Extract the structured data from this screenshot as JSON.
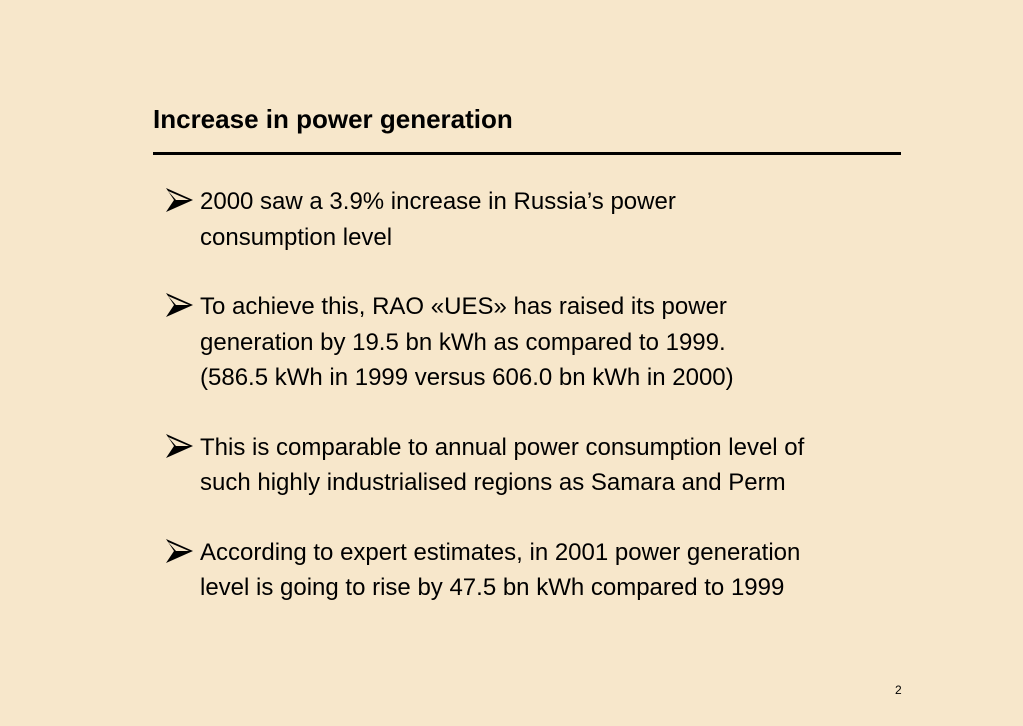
{
  "slide": {
    "title": "Increase in power generation",
    "bullets": [
      {
        "icon": "arrow-bullet-icon",
        "lines": [
          "2000 saw a 3.9% increase in Russia’s power",
          "consumption level"
        ]
      },
      {
        "icon": "arrow-bullet-icon",
        "lines": [
          "To achieve this, RAO «UES» has raised its power",
          "generation by 19.5 bn kWh as compared to 1999.",
          "(586.5 kWh in 1999 versus 606.0 bn kWh in 2000)"
        ]
      },
      {
        "icon": "arrow-bullet-icon",
        "lines": [
          "This is comparable to annual power consumption level of",
          "such highly industrialised regions as Samara and Perm"
        ]
      },
      {
        "icon": "arrow-bullet-icon",
        "lines": [
          "According to expert estimates, in 2001 power generation",
          "level is going to rise by 47.5 bn kWh compared to 1999"
        ]
      }
    ],
    "page_number": "2"
  },
  "colors": {
    "background": "#f7e7cb",
    "text": "#000000"
  }
}
